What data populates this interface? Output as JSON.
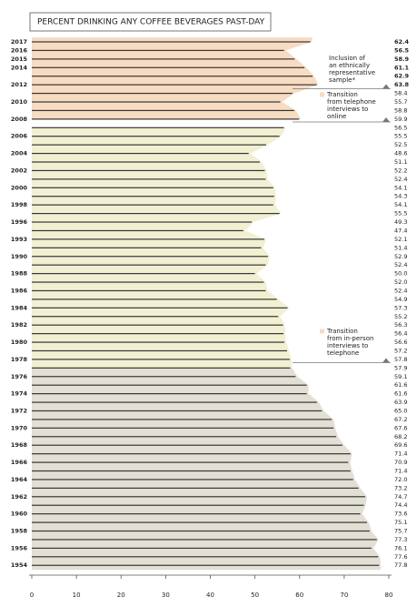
{
  "chart_data": {
    "type": "bar",
    "orientation": "horizontal",
    "title": "PERCENT DRINKING ANY COFFEE BEVERAGES PAST-DAY",
    "categories": [
      "2017",
      "2016",
      "2015",
      "2014",
      null,
      "2012",
      null,
      "2010",
      null,
      "2008",
      null,
      "2006",
      null,
      "2004",
      null,
      "2002",
      null,
      "2000",
      null,
      "1998",
      null,
      "1996",
      null,
      "1993",
      null,
      "1990",
      null,
      "1988",
      null,
      "1986",
      null,
      "1984",
      null,
      "1982",
      null,
      "1980",
      null,
      "1978",
      null,
      "1976",
      null,
      "1974",
      null,
      "1972",
      null,
      "1970",
      null,
      "1968",
      null,
      "1966",
      null,
      "1964",
      null,
      "1962",
      null,
      "1960",
      null,
      "1958",
      null,
      "1956",
      null,
      "1954"
    ],
    "values": [
      62.4,
      56.5,
      58.9,
      61.1,
      62.9,
      63.8,
      58.4,
      55.7,
      58.8,
      59.9,
      56.5,
      55.5,
      52.5,
      48.6,
      51.1,
      52.2,
      52.4,
      54.1,
      54.3,
      54.1,
      55.5,
      49.3,
      47.4,
      52.1,
      51.4,
      52.9,
      52.4,
      50.0,
      52.0,
      52.4,
      54.9,
      57.3,
      55.2,
      56.3,
      56.4,
      56.6,
      57.2,
      57.8,
      57.9,
      59.1,
      61.6,
      61.6,
      63.9,
      65.0,
      67.2,
      67.6,
      68.2,
      69.6,
      71.4,
      70.9,
      71.4,
      72.0,
      73.2,
      74.7,
      74.4,
      73.6,
      75.1,
      75.7,
      77.3,
      76.1,
      77.6,
      77.8
    ],
    "value_labels": [
      "62.4",
      "56.5",
      "58.9",
      "61.1",
      "62.9",
      "63.8",
      "58.4",
      "55.7",
      "58.8",
      "59.9",
      "56.5",
      "55.5",
      "52.5",
      "48.6",
      "51.1",
      "52.2",
      "52.4",
      "54.1",
      "54.3",
      "54.1",
      "55.5",
      "49.3",
      "47.4",
      "52.1",
      "51.4",
      "52.9",
      "52.4",
      "50.0",
      "52.0",
      "52.4",
      "54.9",
      "57.3",
      "55.2",
      "56.3",
      "56.4",
      "56.6",
      "57.2",
      "57.8",
      "57.9",
      "59.1",
      "61.6",
      "61.6",
      "63.9",
      "65.0",
      "67.2",
      "67.6",
      "68.2",
      "69.6",
      "71.4",
      "70.9",
      "71.4",
      "72.0",
      "73.2",
      "74.7",
      "74.4",
      "73.6",
      "75.1",
      "75.7",
      "77.3",
      "76.1",
      "77.6",
      "77.8"
    ],
    "color": "#3a3434",
    "xlim": [
      0,
      80
    ],
    "xticks": [
      0,
      10,
      20,
      30,
      40,
      50,
      60,
      70,
      80
    ],
    "annotations": [
      {
        "lines": [
          "Inclusion of",
          "an ethnically",
          "representative",
          "sample*"
        ]
      },
      {
        "lines": [
          "Transition",
          "from telephone",
          "interviews to",
          "online"
        ]
      },
      {
        "lines": [
          "Transition",
          "from in-person",
          "interviews to",
          "telephone"
        ]
      }
    ]
  }
}
